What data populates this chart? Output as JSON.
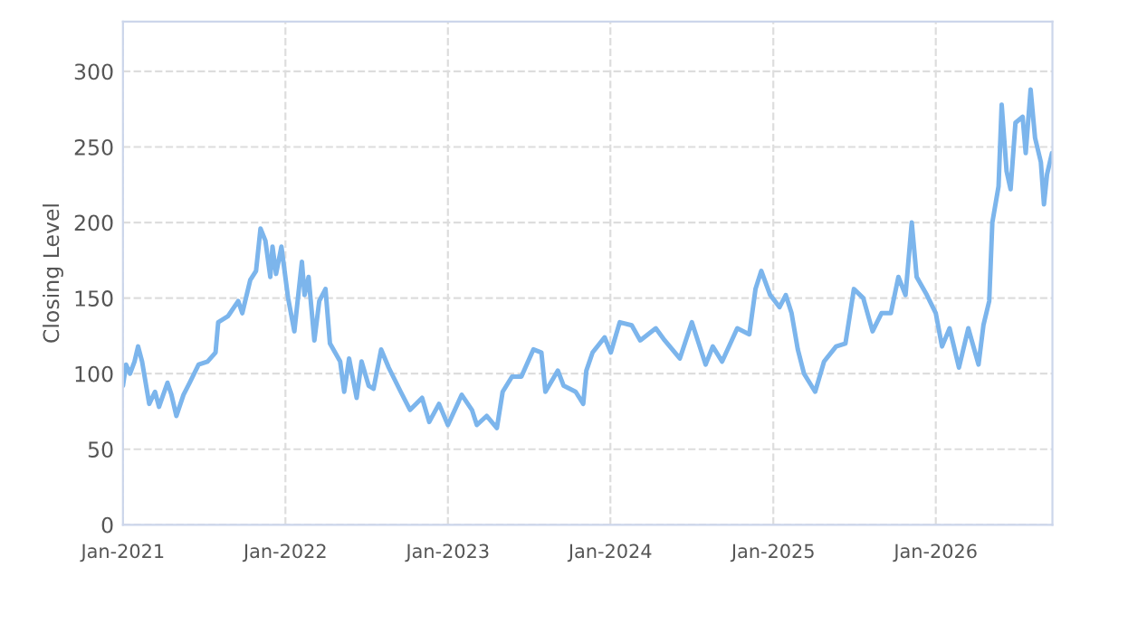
{
  "chart_data": {
    "type": "line",
    "ylabel": "Closing Level",
    "x": [
      "2021-01-01",
      "2021-01-08",
      "2021-01-17",
      "2021-01-27",
      "2021-02-04",
      "2021-02-13",
      "2021-03-01",
      "2021-03-14",
      "2021-03-23",
      "2021-04-11",
      "2021-04-20",
      "2021-05-01",
      "2021-05-17",
      "2021-05-31",
      "2021-06-20",
      "2021-07-10",
      "2021-07-28",
      "2021-08-03",
      "2021-08-25",
      "2021-09-17",
      "2021-09-26",
      "2021-10-14",
      "2021-10-27",
      "2021-11-06",
      "2021-11-17",
      "2021-11-28",
      "2021-12-03",
      "2021-12-11",
      "2021-12-23",
      "2022-01-07",
      "2022-01-21",
      "2022-02-07",
      "2022-02-13",
      "2022-02-22",
      "2022-03-07",
      "2022-03-18",
      "2022-04-01",
      "2022-04-11",
      "2022-05-04",
      "2022-05-13",
      "2022-05-24",
      "2022-06-10",
      "2022-06-21",
      "2022-07-07",
      "2022-07-18",
      "2022-08-04",
      "2022-08-21",
      "2022-09-17",
      "2022-10-08",
      "2022-11-04",
      "2022-11-20",
      "2022-12-12",
      "2023-01-01",
      "2023-02-01",
      "2023-02-24",
      "2023-03-07",
      "2023-03-29",
      "2023-04-21",
      "2023-05-04",
      "2023-05-25",
      "2023-06-15",
      "2023-07-12",
      "2023-07-30",
      "2023-08-08",
      "2023-09-05",
      "2023-09-18",
      "2023-10-15",
      "2023-11-01",
      "2023-11-08",
      "2023-11-22",
      "2023-12-19",
      "2024-01-02",
      "2024-01-22",
      "2024-02-18",
      "2024-03-08",
      "2024-04-12",
      "2024-05-02",
      "2024-06-05",
      "2024-07-02",
      "2024-08-02",
      "2024-08-18",
      "2024-09-08",
      "2024-10-12",
      "2024-11-08",
      "2024-11-22",
      "2024-12-05",
      "2024-12-25",
      "2025-01-15",
      "2025-01-29",
      "2025-02-11",
      "2025-02-25",
      "2025-03-11",
      "2025-04-05",
      "2025-04-25",
      "2025-05-22",
      "2025-06-12",
      "2025-07-01",
      "2025-07-22",
      "2025-08-12",
      "2025-09-01",
      "2025-09-22",
      "2025-10-09",
      "2025-10-25",
      "2025-11-08",
      "2025-11-19",
      "2025-12-12",
      "2026-01-01",
      "2026-01-15",
      "2026-02-01",
      "2026-02-22",
      "2026-03-15",
      "2026-04-07",
      "2026-04-18",
      "2026-05-01",
      "2026-05-08",
      "2026-05-22",
      "2026-05-29",
      "2026-06-09",
      "2026-06-18",
      "2026-06-29",
      "2026-07-15",
      "2026-07-22",
      "2026-08-02",
      "2026-08-12",
      "2026-08-25",
      "2026-09-01",
      "2026-09-08",
      "2026-09-19"
    ],
    "series": [
      {
        "color": "#7cb5ec",
        "values": [
          92,
          106,
          100,
          108,
          118,
          108,
          80,
          88,
          78,
          94,
          86,
          72,
          86,
          94,
          106,
          108,
          114,
          134,
          138,
          148,
          140,
          162,
          168,
          196,
          188,
          164,
          184,
          166,
          184,
          150,
          128,
          174,
          152,
          164,
          122,
          148,
          156,
          120,
          108,
          88,
          110,
          84,
          108,
          92,
          90,
          116,
          104,
          88,
          76,
          84,
          68,
          80,
          66,
          86,
          76,
          66,
          72,
          64,
          88,
          98,
          98,
          116,
          114,
          88,
          102,
          92,
          88,
          80,
          102,
          114,
          124,
          114,
          134,
          132,
          122,
          130,
          122,
          110,
          134,
          106,
          118,
          108,
          130,
          126,
          156,
          168,
          152,
          144,
          152,
          140,
          116,
          100,
          88,
          108,
          118,
          120,
          156,
          150,
          128,
          140,
          140,
          164,
          152,
          200,
          164,
          152,
          140,
          118,
          130,
          104,
          130,
          106,
          132,
          148,
          200,
          224,
          278,
          234,
          222,
          266,
          270,
          246,
          288,
          256,
          240,
          212,
          232,
          246
        ]
      }
    ],
    "xlim": [
      "2021-01-01",
      "2026-09-20"
    ],
    "xticks": [
      {
        "value": "2021-01-01",
        "label": "Jan-2021"
      },
      {
        "value": "2022-01-01",
        "label": "Jan-2022"
      },
      {
        "value": "2023-01-01",
        "label": "Jan-2023"
      },
      {
        "value": "2024-01-01",
        "label": "Jan-2024"
      },
      {
        "value": "2025-01-01",
        "label": "Jan-2025"
      },
      {
        "value": "2026-01-01",
        "label": "Jan-2026"
      }
    ],
    "ylim": [
      0,
      333
    ],
    "yticks": [
      0,
      50,
      100,
      150,
      200,
      250,
      300
    ],
    "grid": true,
    "legend": false,
    "marker": "none",
    "line_style": "solid"
  }
}
